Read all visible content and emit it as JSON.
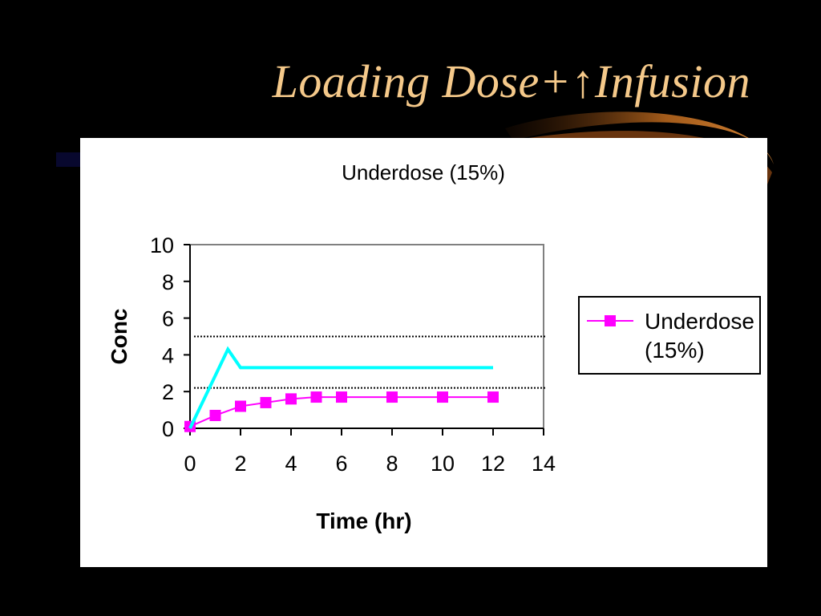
{
  "slide": {
    "title": "Loading Dose+",
    "title_arrow": "↑",
    "title_suffix": "Infusion"
  },
  "chart_data": {
    "type": "line",
    "title": "Underdose (15%)",
    "xlabel": "Time (hr)",
    "ylabel": "Conc",
    "xlim": [
      0,
      14
    ],
    "ylim": [
      0,
      10
    ],
    "x_ticks": [
      0,
      2,
      4,
      6,
      8,
      10,
      12,
      14
    ],
    "y_ticks": [
      0,
      2,
      4,
      6,
      8,
      10
    ],
    "grid": false,
    "legend_position": "right",
    "series": [
      {
        "name": "Underdose (15%)",
        "color": "#ff00ff",
        "marker": "square",
        "x": [
          0,
          1,
          2,
          3,
          4,
          5,
          6,
          8,
          10,
          12
        ],
        "y": [
          0.1,
          0.7,
          1.2,
          1.4,
          1.6,
          1.7,
          1.7,
          1.7,
          1.7,
          1.7
        ]
      },
      {
        "color": "#00ffff",
        "marker": "none",
        "in_legend": false,
        "x": [
          0,
          1.5,
          2,
          12
        ],
        "y": [
          0,
          4.3,
          3.3,
          3.3
        ]
      }
    ],
    "reference_lines": [
      {
        "y": 5,
        "style": "dotted",
        "color": "#000000"
      },
      {
        "y": 2.2,
        "style": "dotted",
        "color": "#000000"
      }
    ]
  },
  "colors": {
    "background": "#000000",
    "title": "#f5c98a",
    "swoosh": "#b5651d",
    "panel": "#ffffff"
  }
}
